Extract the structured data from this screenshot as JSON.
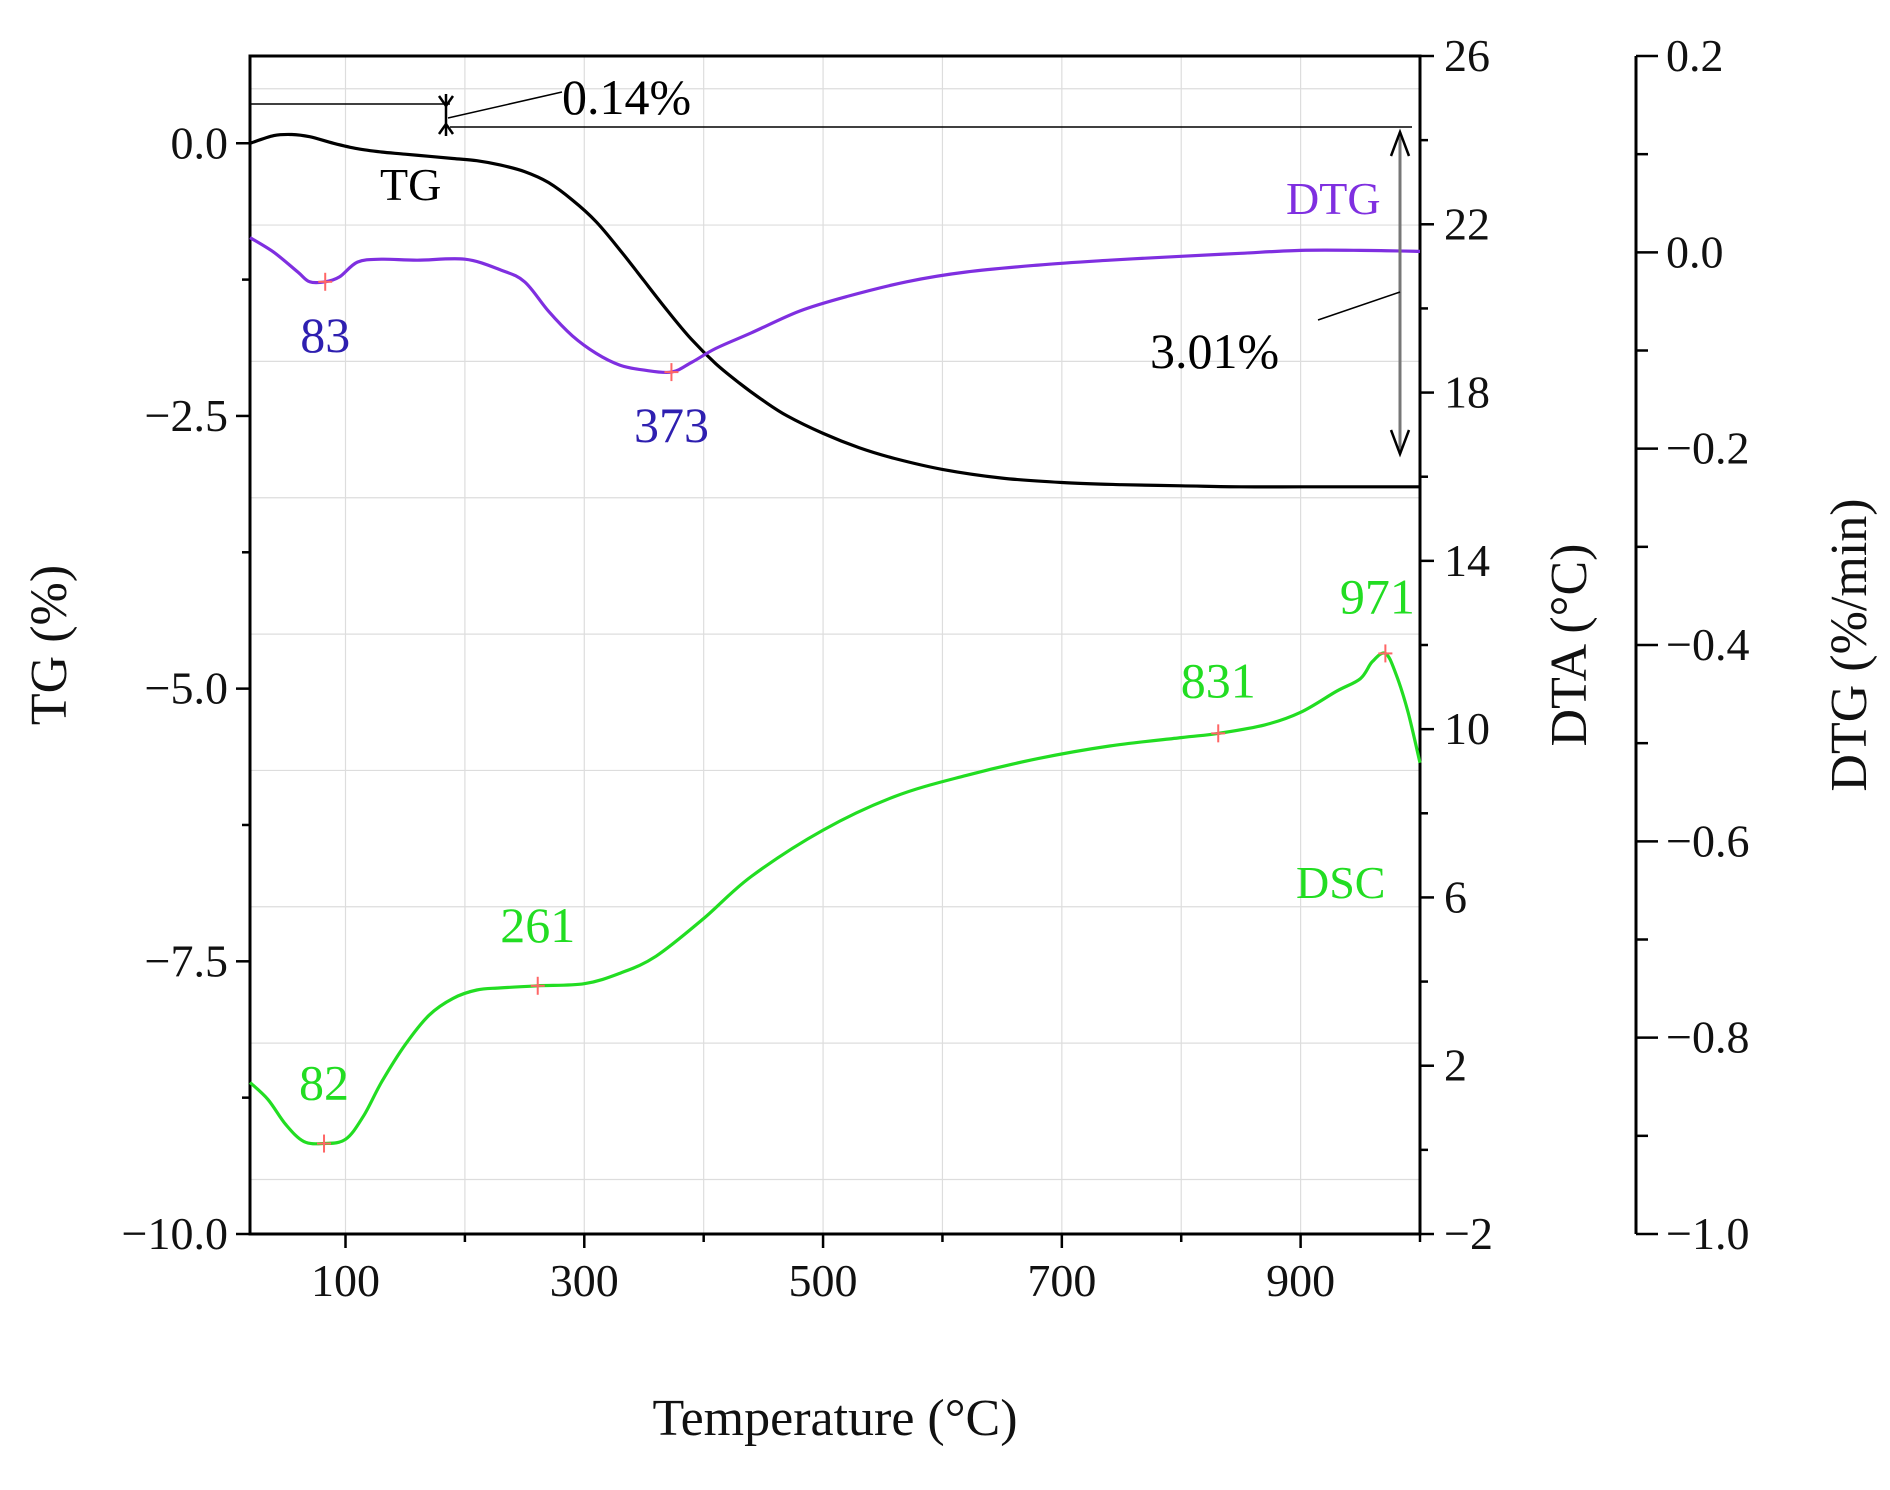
{
  "chart_data": {
    "type": "line",
    "title": "",
    "xlabel": "Temperature (°C)",
    "xlim": [
      20,
      1000
    ],
    "xticks": [
      100,
      300,
      500,
      700,
      900
    ],
    "axes": {
      "tg": {
        "label": "TG (%)",
        "lim": [
          -10,
          0.8
        ],
        "ticks": [
          0.0,
          -2.5,
          -5.0,
          -7.5,
          -10.0
        ],
        "tick_labels": [
          "0.0",
          "−2.5",
          "−5.0",
          "−7.5",
          "−10.0"
        ],
        "position": "left"
      },
      "dta": {
        "label": "DTA (°C)",
        "lim": [
          -2,
          26
        ],
        "ticks": [
          26,
          22,
          18,
          14,
          10,
          6,
          2,
          -2
        ],
        "tick_labels": [
          "26",
          "22",
          "18",
          "14",
          "10",
          "6",
          "2",
          "−2"
        ],
        "position": "right"
      },
      "dtg": {
        "label": "DTG (%/min)",
        "lim": [
          -1.0,
          0.2
        ],
        "ticks": [
          0.2,
          0.0,
          -0.2,
          -0.4,
          -0.6,
          -0.8,
          -1.0
        ],
        "tick_labels": [
          "0.2",
          "0.0",
          "−0.2",
          "−0.4",
          "−0.6",
          "−0.8",
          "−1.0"
        ],
        "position": "right-offset"
      }
    },
    "series": [
      {
        "name": "TG",
        "axis": "tg",
        "color": "#000000",
        "x": [
          20,
          40,
          55,
          70,
          90,
          110,
          130,
          150,
          170,
          190,
          210,
          230,
          250,
          270,
          290,
          310,
          330,
          350,
          370,
          390,
          410,
          430,
          450,
          470,
          500,
          530,
          560,
          600,
          650,
          700,
          750,
          800,
          850,
          900,
          950,
          1000
        ],
        "y": [
          0.0,
          0.07,
          0.08,
          0.06,
          0.0,
          -0.05,
          -0.08,
          -0.1,
          -0.12,
          -0.14,
          -0.16,
          -0.2,
          -0.26,
          -0.36,
          -0.52,
          -0.72,
          -0.98,
          -1.26,
          -1.54,
          -1.8,
          -2.02,
          -2.2,
          -2.36,
          -2.5,
          -2.66,
          -2.79,
          -2.89,
          -2.99,
          -3.07,
          -3.11,
          -3.13,
          -3.14,
          -3.15,
          -3.15,
          -3.15,
          -3.15
        ]
      },
      {
        "name": "DTG",
        "axis": "dtg",
        "color": "#7f2fe0",
        "x": [
          20,
          40,
          60,
          70,
          83,
          95,
          110,
          130,
          160,
          200,
          230,
          250,
          270,
          290,
          310,
          330,
          350,
          373,
          390,
          410,
          440,
          480,
          520,
          570,
          620,
          680,
          740,
          800,
          850,
          900,
          950,
          1000
        ],
        "y": [
          0.015,
          0.0,
          -0.02,
          -0.03,
          -0.03,
          -0.025,
          -0.01,
          -0.007,
          -0.008,
          -0.007,
          -0.018,
          -0.03,
          -0.06,
          -0.085,
          -0.103,
          -0.115,
          -0.12,
          -0.122,
          -0.112,
          -0.098,
          -0.082,
          -0.06,
          -0.045,
          -0.03,
          -0.02,
          -0.013,
          -0.008,
          -0.004,
          -0.001,
          0.002,
          0.002,
          0.001
        ]
      },
      {
        "name": "DSC",
        "axis": "dta",
        "color": "#22dd22",
        "x": [
          20,
          35,
          50,
          65,
          82,
          100,
          115,
          130,
          150,
          170,
          190,
          210,
          230,
          261,
          300,
          330,
          360,
          400,
          440,
          500,
          560,
          620,
          680,
          740,
          800,
          831,
          870,
          900,
          930,
          950,
          960,
          971,
          980,
          990,
          1000
        ],
        "y": [
          1.6,
          1.2,
          0.6,
          0.2,
          0.15,
          0.25,
          0.8,
          1.6,
          2.5,
          3.2,
          3.6,
          3.8,
          3.85,
          3.9,
          3.95,
          4.2,
          4.6,
          5.5,
          6.5,
          7.6,
          8.4,
          8.9,
          9.3,
          9.6,
          9.8,
          9.9,
          10.1,
          10.4,
          10.9,
          11.2,
          11.6,
          11.8,
          11.3,
          10.4,
          9.2
        ]
      }
    ],
    "peaks": [
      {
        "series": "DTG",
        "x": 83,
        "y": -0.03,
        "label": "83",
        "color": "#2e1fb0"
      },
      {
        "series": "DTG",
        "x": 373,
        "y": -0.122,
        "label": "373",
        "color": "#2e1fb0"
      },
      {
        "series": "DSC",
        "x": 82,
        "y": 0.15,
        "label": "82",
        "color": "#22dd22"
      },
      {
        "series": "DSC",
        "x": 261,
        "y": 3.9,
        "label": "261",
        "color": "#22dd22"
      },
      {
        "series": "DSC",
        "x": 831,
        "y": 9.9,
        "label": "831",
        "color": "#22dd22"
      },
      {
        "series": "DSC",
        "x": 971,
        "y": 11.8,
        "label": "971",
        "color": "#22dd22"
      }
    ],
    "annotations": {
      "tg_label": "TG",
      "dtg_label": "DTG",
      "dsc_label": "DSC",
      "loss1": "0.14%",
      "loss2": "3.01%"
    },
    "colors": {
      "tg": "#000000",
      "dtg": "#7f2fe0",
      "peak_blue": "#2e1fb0",
      "dsc": "#22dd22",
      "marker": "#ff6666",
      "grid": "#dddddd"
    }
  }
}
